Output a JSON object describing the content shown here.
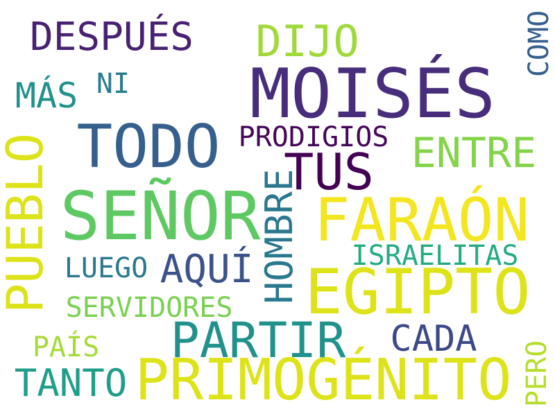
{
  "words": {
    "moises": {
      "text": "MOISÉS",
      "color": "#472d7b"
    },
    "senor": {
      "text": "SEÑOR",
      "color": "#5ec962"
    },
    "faraon": {
      "text": "FARAÓN",
      "color": "#f3e51e"
    },
    "egipto": {
      "text": "EGIPTO",
      "color": "#dde318"
    },
    "todo": {
      "text": "TODO",
      "color": "#355f8d"
    },
    "primogenito": {
      "text": "PRIMOGÉNITO",
      "color": "#dde318"
    },
    "tus": {
      "text": "TUS",
      "color": "#440154"
    },
    "partir": {
      "text": "PARTIR",
      "color": "#21918c"
    },
    "pueblo": {
      "text": "PUEBLO",
      "color": "#dde318"
    },
    "hombre": {
      "text": "HOMBRE",
      "color": "#2a788e"
    },
    "entre": {
      "text": "ENTRE",
      "color": "#84d44b"
    },
    "dijo": {
      "text": "DIJO",
      "color": "#9fda3a"
    },
    "despues": {
      "text": "DESPUÉS",
      "color": "#482173"
    },
    "aqui": {
      "text": "AQUÍ",
      "color": "#3b528b"
    },
    "cada": {
      "text": "CADA",
      "color": "#3e4989"
    },
    "tanto": {
      "text": "TANTO",
      "color": "#1f9e89"
    },
    "mas": {
      "text": "MÁS",
      "color": "#21918c"
    },
    "prodigios": {
      "text": "PRODIGIOS",
      "color": "#46075a"
    },
    "israelitas": {
      "text": "ISRAELITAS",
      "color": "#25ab82"
    },
    "servidores": {
      "text": "SERVIDORES",
      "color": "#7ad151"
    },
    "como": {
      "text": "COMO",
      "color": "#355f8d"
    },
    "luego": {
      "text": "LUEGO",
      "color": "#2a788e"
    },
    "ni": {
      "text": "NI",
      "color": "#287c8e"
    },
    "pais": {
      "text": "PAÍS",
      "color": "#a5db36"
    },
    "pero": {
      "text": "PERO",
      "color": "#b5de2b"
    }
  }
}
